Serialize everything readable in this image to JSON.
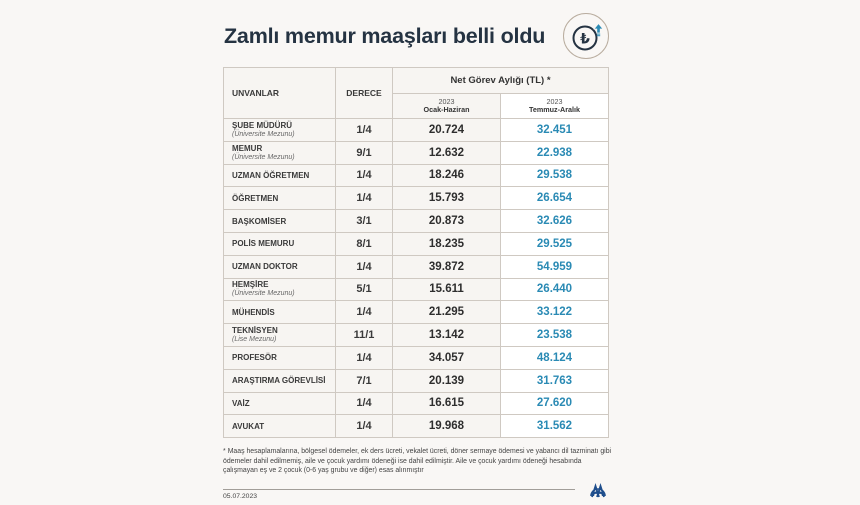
{
  "header": {
    "title": "Zamlı memur maaşları belli oldu",
    "badge_icon": "turkish-lira-up-arrow-icon",
    "badge_glyph": "₺"
  },
  "table": {
    "columns": {
      "name": "UNVANLAR",
      "degree": "DERECE",
      "group": "Net Görev Aylığı (TL) *",
      "period1_year": "2023",
      "period1_label": "Ocak-Haziran",
      "period2_year": "2023",
      "period2_label": "Temmuz-Aralık"
    },
    "rows": [
      {
        "title": "ŞUBE MÜDÜRÜ",
        "sub": "(Üniversite Mezunu)",
        "degree": "1/4",
        "h1": "20.724",
        "h2": "32.451"
      },
      {
        "title": "MEMUR",
        "sub": "(Üniversite Mezunu)",
        "degree": "9/1",
        "h1": "12.632",
        "h2": "22.938"
      },
      {
        "title": "UZMAN ÖĞRETMEN",
        "sub": "",
        "degree": "1/4",
        "h1": "18.246",
        "h2": "29.538"
      },
      {
        "title": "ÖĞRETMEN",
        "sub": "",
        "degree": "1/4",
        "h1": "15.793",
        "h2": "26.654"
      },
      {
        "title": "BAŞKOMİSER",
        "sub": "",
        "degree": "3/1",
        "h1": "20.873",
        "h2": "32.626"
      },
      {
        "title": "POLİS MEMURU",
        "sub": "",
        "degree": "8/1",
        "h1": "18.235",
        "h2": "29.525"
      },
      {
        "title": "UZMAN DOKTOR",
        "sub": "",
        "degree": "1/4",
        "h1": "39.872",
        "h2": "54.959"
      },
      {
        "title": "HEMŞİRE",
        "sub": "(Üniversite Mezunu)",
        "degree": "5/1",
        "h1": "15.611",
        "h2": "26.440"
      },
      {
        "title": "MÜHENDİS",
        "sub": "",
        "degree": "1/4",
        "h1": "21.295",
        "h2": "33.122"
      },
      {
        "title": "TEKNİSYEN",
        "sub": "(Lise Mezunu)",
        "degree": "11/1",
        "h1": "13.142",
        "h2": "23.538"
      },
      {
        "title": "PROFESÖR",
        "sub": "",
        "degree": "1/4",
        "h1": "34.057",
        "h2": "48.124"
      },
      {
        "title": "ARAŞTIRMA GÖREVLİSİ",
        "sub": "",
        "degree": "7/1",
        "h1": "20.139",
        "h2": "31.763"
      },
      {
        "title": "VAİZ",
        "sub": "",
        "degree": "1/4",
        "h1": "16.615",
        "h2": "27.620"
      },
      {
        "title": "AVUKAT",
        "sub": "",
        "degree": "1/4",
        "h1": "19.968",
        "h2": "31.562"
      }
    ]
  },
  "footnote": {
    "marker": "*",
    "text": "Maaş hesaplamalarına, bölgesel ödemeler, ek ders ücreti, vekalet ücreti, döner sermaye ödemesi ve yabancı dil tazminatı gibi ödemeler dahil edilmemiş, aile ve çocuk yardımı ödeneği ise dahil edilmiştir. Aile ve çocuk yardımı ödeneği hesabında çalışmayan eş ve 2 çocuk (0-6 yaş grubu ve diğer) esas alınmıştır"
  },
  "footer": {
    "date": "05.07.2023",
    "logo_icon": "anadolu-agency-logo-icon"
  },
  "colors": {
    "title": "#253342",
    "accent_blue": "#2a8ab4",
    "background": "#f9f7f5",
    "logo_blue": "#1f4e8c"
  }
}
